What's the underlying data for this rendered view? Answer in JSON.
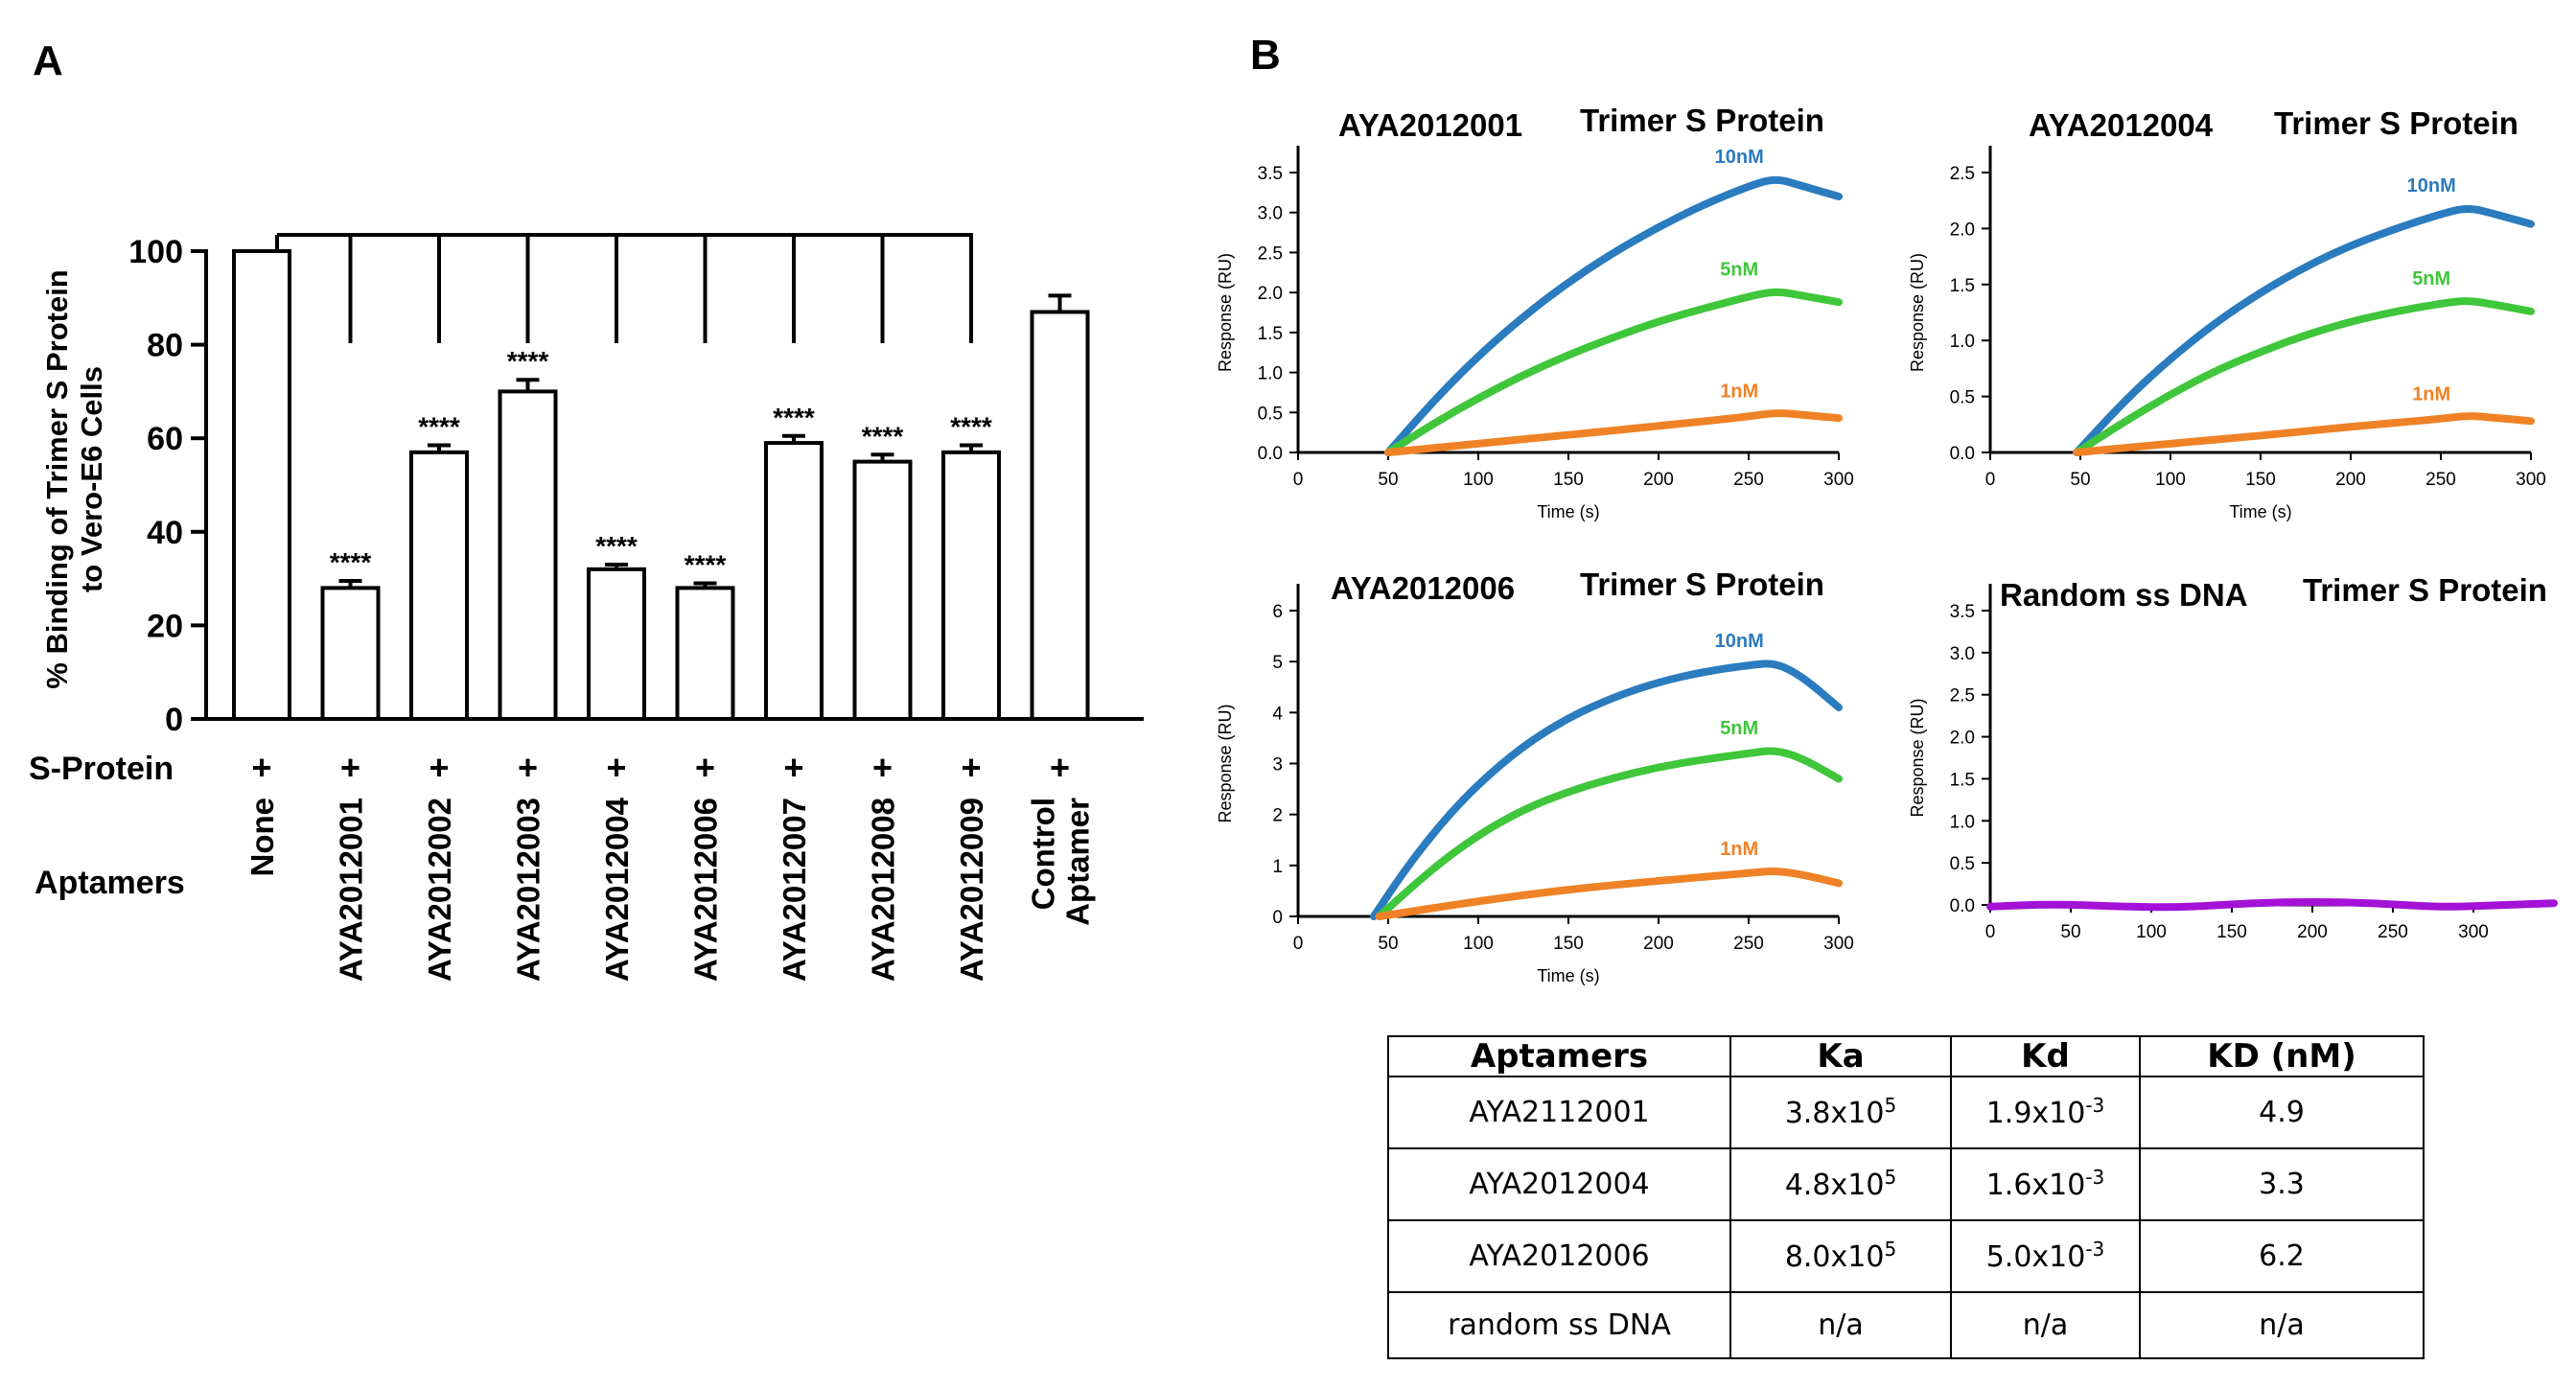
{
  "panels": {
    "a": "A",
    "b": "B"
  },
  "chart_data": [
    {
      "type": "bar",
      "title": "",
      "ylabel_lines": [
        "% Binding of  Trimer S Protein",
        "to Vero-E6 Cells"
      ],
      "ylim": [
        0,
        100
      ],
      "yticks": [
        "0",
        "20",
        "40",
        "60",
        "80",
        "100"
      ],
      "row_labels": {
        "s_protein": "S-Protein",
        "aptamers": "Aptamers"
      },
      "s_protein_marks": [
        "+",
        "+",
        "+",
        "+",
        "+",
        "+",
        "+",
        "+",
        "+",
        "+"
      ],
      "categories": [
        [
          "None"
        ],
        [
          "AYA2012001"
        ],
        [
          "AYA2012002"
        ],
        [
          "AYA2012003"
        ],
        [
          "AYA2012004"
        ],
        [
          "AYA2012006"
        ],
        [
          "AYA2012007"
        ],
        [
          "AYA2012008"
        ],
        [
          "AYA2012009"
        ],
        [
          "Control",
          "Aptamer"
        ]
      ],
      "values": [
        100,
        28,
        57,
        70,
        32,
        28,
        59,
        55,
        57,
        87
      ],
      "errors": [
        0,
        1.5,
        1.5,
        2.5,
        1,
        1,
        1.5,
        1.5,
        1.5,
        3.5
      ],
      "significance": [
        "",
        "****",
        "****",
        "****",
        "****",
        "****",
        "****",
        "****",
        "****",
        ""
      ]
    },
    {
      "type": "line",
      "title": "AYA2012001",
      "subtitle": "Trimer S Protein",
      "xlabel": "Time (s)",
      "ylabel": "Response (RU)",
      "xlim": [
        0,
        300
      ],
      "ylim": [
        0,
        3.5
      ],
      "xticks": [
        0,
        50,
        100,
        150,
        200,
        250,
        300
      ],
      "yticks": [
        "0.0",
        "0.5",
        "1.0",
        "1.5",
        "2.0",
        "2.5",
        "3.0",
        "3.5"
      ],
      "series": [
        {
          "name": "10nM",
          "color": "#2b7bbf",
          "x": [
            50,
            75,
            100,
            125,
            150,
            175,
            200,
            225,
            250,
            265,
            280,
            300
          ],
          "y": [
            0,
            0.64,
            1.21,
            1.7,
            2.13,
            2.5,
            2.82,
            3.1,
            3.33,
            3.43,
            3.33,
            3.2
          ]
        },
        {
          "name": "5nM",
          "color": "#3fc63a",
          "x": [
            50,
            75,
            100,
            125,
            150,
            175,
            200,
            225,
            250,
            265,
            280,
            300
          ],
          "y": [
            0,
            0.36,
            0.68,
            0.97,
            1.22,
            1.44,
            1.64,
            1.8,
            1.95,
            2.02,
            1.96,
            1.88
          ]
        },
        {
          "name": "1nM",
          "color": "#ef8226",
          "x": [
            50,
            100,
            150,
            200,
            250,
            265,
            280,
            300
          ],
          "y": [
            0,
            0.11,
            0.22,
            0.33,
            0.45,
            0.5,
            0.47,
            0.43
          ]
        }
      ]
    },
    {
      "type": "line",
      "title": "AYA2012004",
      "subtitle": "Trimer S Protein",
      "xlabel": "Time (s)",
      "ylabel": "Response (RU)",
      "xlim": [
        0,
        300
      ],
      "ylim": [
        0,
        2.5
      ],
      "xticks": [
        0,
        50,
        100,
        150,
        200,
        250,
        300
      ],
      "yticks": [
        "0.0",
        "0.5",
        "1.0",
        "1.5",
        "2.0",
        "2.5"
      ],
      "series": [
        {
          "name": "10nM",
          "color": "#2b7bbf",
          "x": [
            48,
            75,
            100,
            125,
            150,
            175,
            200,
            225,
            250,
            265,
            280,
            300
          ],
          "y": [
            0,
            0.47,
            0.84,
            1.16,
            1.43,
            1.66,
            1.85,
            2.0,
            2.13,
            2.19,
            2.13,
            2.04
          ]
        },
        {
          "name": "5nM",
          "color": "#3fc63a",
          "x": [
            48,
            75,
            100,
            125,
            150,
            175,
            200,
            225,
            250,
            265,
            280,
            300
          ],
          "y": [
            0,
            0.28,
            0.52,
            0.73,
            0.9,
            1.05,
            1.17,
            1.26,
            1.33,
            1.36,
            1.32,
            1.26
          ]
        },
        {
          "name": "1nM",
          "color": "#ef8226",
          "x": [
            48,
            100,
            150,
            200,
            250,
            265,
            280,
            300
          ],
          "y": [
            0,
            0.08,
            0.15,
            0.23,
            0.3,
            0.33,
            0.31,
            0.28
          ]
        }
      ]
    },
    {
      "type": "line",
      "title": "AYA2012006",
      "subtitle": "Trimer S Protein",
      "xlabel": "Time (s)",
      "ylabel": "Response (RU)",
      "xlim": [
        0,
        300
      ],
      "ylim": [
        0,
        6
      ],
      "xticks": [
        0,
        50,
        100,
        150,
        200,
        250,
        300
      ],
      "yticks": [
        "0",
        "1",
        "2",
        "3",
        "4",
        "5",
        "6"
      ],
      "series": [
        {
          "name": "10nM",
          "color": "#2b7bbf",
          "x": [
            42,
            60,
            80,
            100,
            125,
            150,
            175,
            200,
            225,
            250,
            265,
            280,
            300
          ],
          "y": [
            0,
            0.95,
            1.85,
            2.6,
            3.35,
            3.9,
            4.3,
            4.6,
            4.8,
            4.93,
            4.98,
            4.7,
            4.1
          ]
        },
        {
          "name": "5nM",
          "color": "#3fc63a",
          "x": [
            45,
            75,
            100,
            125,
            150,
            175,
            200,
            225,
            250,
            265,
            280,
            300
          ],
          "y": [
            0,
            0.95,
            1.6,
            2.1,
            2.45,
            2.72,
            2.93,
            3.08,
            3.2,
            3.27,
            3.1,
            2.7
          ]
        },
        {
          "name": "1nM",
          "color": "#ef8226",
          "x": [
            45,
            100,
            150,
            200,
            250,
            265,
            280,
            300
          ],
          "y": [
            0,
            0.3,
            0.53,
            0.7,
            0.85,
            0.9,
            0.82,
            0.65
          ]
        }
      ]
    },
    {
      "type": "line",
      "title": "Random ss DNA",
      "subtitle": "Trimer S Protein",
      "xlabel": "",
      "ylabel": "Response (RU)",
      "xlim": [
        0,
        350
      ],
      "ylim": [
        0,
        3.5
      ],
      "xticks": [
        0,
        50,
        100,
        150,
        200,
        250,
        300
      ],
      "yticks": [
        "0.0",
        "0.5",
        "1.0",
        "1.5",
        "2.0",
        "2.5",
        "3.0",
        "3.5"
      ],
      "series": [
        {
          "name": "",
          "color": "#a312d6",
          "x": [
            0,
            40,
            80,
            120,
            160,
            200,
            240,
            280,
            320,
            350
          ],
          "y": [
            -0.02,
            0.01,
            -0.02,
            -0.03,
            0.02,
            0.04,
            0.02,
            -0.03,
            0.0,
            0.02
          ]
        }
      ]
    }
  ],
  "table": {
    "headers": [
      "Aptamers",
      "Ka",
      "Kd",
      "KD (nM)"
    ],
    "rows": [
      [
        {
          "base": "AYA2112001"
        },
        {
          "base": "3.8x10",
          "sup": "5"
        },
        {
          "base": "1.9x10",
          "sup": "-3"
        },
        {
          "base": "4.9"
        }
      ],
      [
        {
          "base": "AYA2012004"
        },
        {
          "base": "4.8x10",
          "sup": "5"
        },
        {
          "base": "1.6x10",
          "sup": "-3"
        },
        {
          "base": "3.3"
        }
      ],
      [
        {
          "base": "AYA2012006"
        },
        {
          "base": "8.0x10",
          "sup": "5"
        },
        {
          "base": "5.0x10",
          "sup": "-3"
        },
        {
          "base": "6.2"
        }
      ],
      [
        {
          "base": "random ss DNA"
        },
        {
          "base": "n/a"
        },
        {
          "base": "n/a"
        },
        {
          "base": "n/a"
        }
      ]
    ]
  }
}
